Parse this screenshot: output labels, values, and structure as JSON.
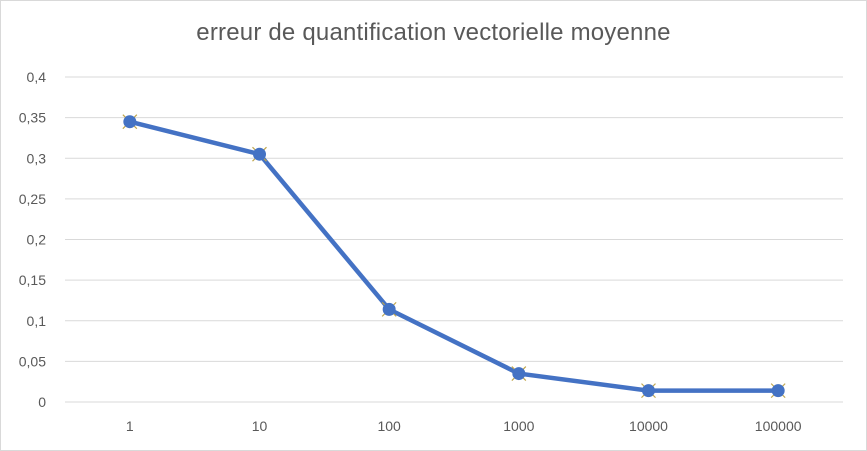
{
  "chart_data": {
    "type": "line",
    "title": "erreur de quantification vectorielle moyenne",
    "xlabel": "",
    "ylabel": "",
    "categories": [
      "1",
      "10",
      "100",
      "1000",
      "10000",
      "100000"
    ],
    "series": [
      {
        "values": [
          0.345,
          0.305,
          0.114,
          0.035,
          0.014,
          0.014
        ],
        "color": "#4472c4",
        "marker": "circle"
      }
    ],
    "ylim": [
      0,
      0.4
    ],
    "yticks": [
      0,
      0.05,
      0.1,
      0.15,
      0.2,
      0.25,
      0.3,
      0.35,
      0.4
    ],
    "ytick_labels": [
      "0",
      "0,05",
      "0,1",
      "0,15",
      "0,2",
      "0,25",
      "0,3",
      "0,35",
      "0,4"
    ],
    "grid": true,
    "legend": "none"
  }
}
